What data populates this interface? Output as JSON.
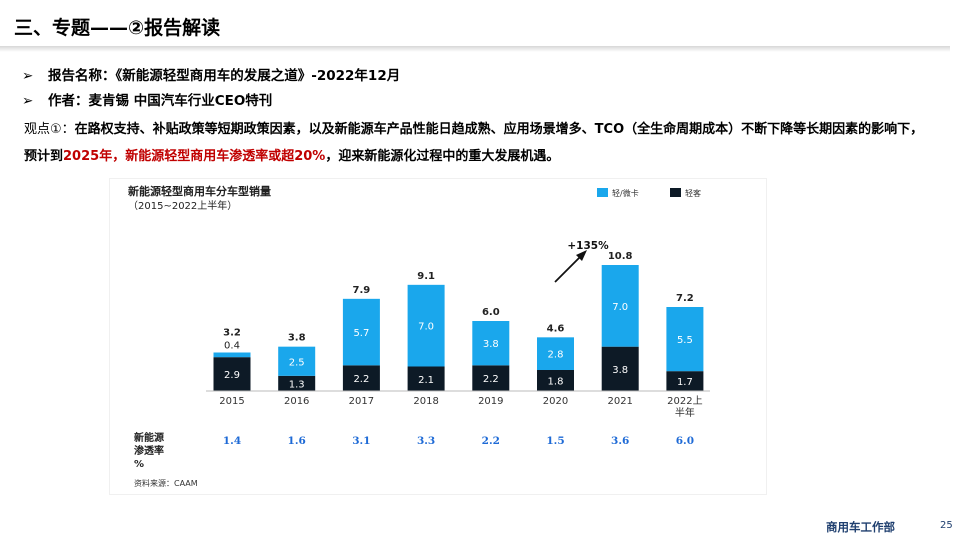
{
  "slide": {
    "title": "三、专题——②报告解读",
    "bullets": [
      "报告名称：《新能源轻型商用车的发展之道》-2022年12月",
      "作者：麦肯锡  中国汽车行业CEO特刊"
    ],
    "bullet_marker": "➢",
    "view": {
      "lead": "观点①：",
      "text_1": "在路权支持、补贴政策等短期政策因素，以及新能源车产品性能日趋成熟、应用场景增多、TCO（全生命周期成本）不断下降等长期因素的影响下，预计到",
      "highlight": "2025年，新能源轻型商用车渗透率或超20%",
      "text_2": "，迎来新能源化过程中的重大发展机遇。"
    },
    "footer": "商用车工作部",
    "page_number": "25"
  },
  "chart_data": {
    "type": "bar",
    "title": "新能源轻型商用车分车型销量",
    "subtitle": "（2015~2022上半年）",
    "categories": [
      "2015",
      "2016",
      "2017",
      "2018",
      "2019",
      "2020",
      "2021",
      "2022上半年"
    ],
    "series": [
      {
        "name": "轻客",
        "color": "#0d1a26",
        "values": [
          2.9,
          1.3,
          2.2,
          2.1,
          2.2,
          1.8,
          3.8,
          1.7
        ]
      },
      {
        "name": "轻/微卡",
        "color": "#1aa7ec",
        "values": [
          0.4,
          2.5,
          5.7,
          7.0,
          3.8,
          2.8,
          7.0,
          5.5
        ]
      }
    ],
    "totals": [
      3.2,
      3.8,
      7.9,
      9.1,
      6.0,
      4.6,
      10.8,
      7.2
    ],
    "stacked": true,
    "ylim": [
      0,
      12
    ],
    "growth_annotation": "+135%",
    "penetration": {
      "label": "新能源渗透率%",
      "label_lines": [
        "新能源",
        "渗透率",
        "%"
      ],
      "values": [
        "1.4",
        "1.6",
        "3.1",
        "3.3",
        "2.2",
        "1.5",
        "3.6",
        "6.0"
      ],
      "color": "#1e6ad6"
    },
    "legend_position": "top-right",
    "source": "资料来源：CAAM"
  }
}
